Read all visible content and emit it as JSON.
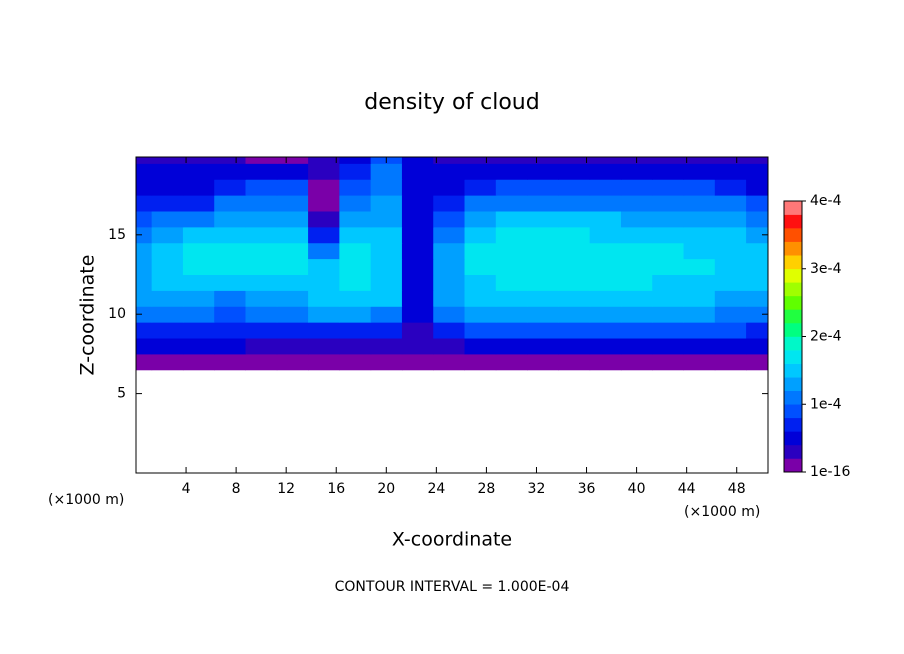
{
  "chart_data": {
    "type": "heatmap",
    "title": "density of cloud",
    "xlabel": "X-coordinate",
    "ylabel": "Z-coordinate",
    "x_unit_label": "(×1000 m)",
    "y_unit_label": "(×1000 m)",
    "footer": "CONTOUR INTERVAL = 1.000E-04",
    "xlim": [
      0,
      50.5
    ],
    "ylim": [
      0,
      19.9
    ],
    "xticks": [
      4,
      8,
      12,
      16,
      20,
      24,
      28,
      32,
      36,
      40,
      44,
      48
    ],
    "yticks": [
      5,
      10,
      15
    ],
    "clim": [
      1e-16,
      0.0004
    ],
    "cticks": [
      {
        "value": 1e-16,
        "label": "1e-16"
      },
      {
        "value": 0.0001,
        "label": "1e-4"
      },
      {
        "value": 0.0002,
        "label": "2e-4"
      },
      {
        "value": 0.0003,
        "label": "3e-4"
      },
      {
        "value": 0.0004,
        "label": "4e-4"
      }
    ],
    "colormap": [
      "#7a00a8",
      "#2a00c0",
      "#0000d8",
      "#0020f0",
      "#0050ff",
      "#0078ff",
      "#00a0ff",
      "#00c8ff",
      "#00e6f0",
      "#00f8c8",
      "#00ff80",
      "#20ff40",
      "#60ff00",
      "#a0ff00",
      "#e0ff00",
      "#ffd000",
      "#ff9000",
      "#ff5000",
      "#ff1010",
      "#ff7878"
    ],
    "x": [
      0,
      2.5,
      5,
      7.5,
      10,
      12.5,
      15,
      17.5,
      20,
      22.5,
      25,
      27.5,
      30,
      32.5,
      35,
      37.5,
      40,
      42.5,
      45,
      47.5,
      50
    ],
    "y": [
      7,
      8,
      9,
      10,
      11,
      12,
      13,
      14,
      15,
      16,
      17,
      18,
      19,
      20
    ],
    "z": [
      [
        2e-05,
        2e-05,
        2e-05,
        2e-05,
        1e-05,
        1e-05,
        1e-05,
        1e-05,
        1e-05,
        1e-05,
        2e-05,
        2e-05,
        2e-05,
        2e-05,
        2e-05,
        2e-05,
        2e-05,
        2e-05,
        2e-05,
        2e-05,
        2e-05
      ],
      [
        5e-05,
        5e-05,
        5e-05,
        5e-05,
        4e-05,
        3e-05,
        4e-05,
        4e-05,
        4e-05,
        3e-05,
        4e-05,
        5e-05,
        5e-05,
        5e-05,
        5e-05,
        5e-05,
        5e-05,
        5e-05,
        5e-05,
        5e-05,
        5e-05
      ],
      [
        8e-05,
        8e-05,
        8e-05,
        7e-05,
        8e-05,
        8e-05,
        8e-05,
        8e-05,
        8e-05,
        4e-05,
        8e-05,
        9e-05,
        9e-05,
        9e-05,
        9e-05,
        9e-05,
        9e-05,
        9e-05,
        9e-05,
        9e-05,
        8e-05
      ],
      [
        0.00011,
        0.00011,
        0.00012,
        9e-05,
        0.00011,
        0.00012,
        0.00013,
        0.00013,
        0.00012,
        5e-05,
        0.00011,
        0.00013,
        0.00013,
        0.00013,
        0.00013,
        0.00013,
        0.00013,
        0.00013,
        0.00013,
        0.00012,
        0.00012
      ],
      [
        0.00013,
        0.00013,
        0.00014,
        0.00011,
        0.00014,
        0.00014,
        0.00015,
        0.00016,
        0.00015,
        5e-05,
        0.00013,
        0.00015,
        0.00015,
        0.00015,
        0.00015,
        0.00015,
        0.00015,
        0.00015,
        0.00015,
        0.00014,
        0.00014
      ],
      [
        0.00014,
        0.00015,
        0.00016,
        0.00016,
        0.00016,
        0.00016,
        0.00016,
        0.00017,
        0.00016,
        5e-05,
        0.00014,
        0.00016,
        0.00017,
        0.00017,
        0.00017,
        0.00017,
        0.00017,
        0.00016,
        0.00016,
        0.00016,
        0.00015
      ],
      [
        0.00014,
        0.00015,
        0.00017,
        0.00017,
        0.00017,
        0.00017,
        0.00015,
        0.00018,
        0.00016,
        5e-05,
        0.00014,
        0.00017,
        0.00018,
        0.00018,
        0.00018,
        0.00018,
        0.00017,
        0.00017,
        0.00017,
        0.00016,
        0.00015
      ],
      [
        0.00013,
        0.00015,
        0.00017,
        0.00017,
        0.00017,
        0.00017,
        0.00012,
        0.00017,
        0.00016,
        5e-05,
        0.00013,
        0.00017,
        0.00018,
        0.00018,
        0.00018,
        0.00017,
        0.00017,
        0.00017,
        0.00016,
        0.00016,
        0.00015
      ],
      [
        0.00012,
        0.00014,
        0.00015,
        0.00016,
        0.00016,
        0.00016,
        7e-05,
        0.00016,
        0.00015,
        5e-05,
        0.00012,
        0.00016,
        0.00017,
        0.00017,
        0.00017,
        0.00016,
        0.00016,
        0.00016,
        0.00015,
        0.00015,
        0.00014
      ],
      [
        0.0001,
        0.00012,
        0.00012,
        0.00014,
        0.00014,
        0.00014,
        4e-05,
        0.00014,
        0.00014,
        5e-05,
        0.0001,
        0.00014,
        0.00015,
        0.00015,
        0.00015,
        0.00015,
        0.00014,
        0.00014,
        0.00013,
        0.00013,
        0.00012
      ],
      [
        8e-05,
        8e-05,
        8e-05,
        0.00011,
        0.00012,
        0.00012,
        2e-05,
        0.00012,
        0.00013,
        5e-05,
        8e-05,
        0.00011,
        0.00012,
        0.00012,
        0.00012,
        0.00012,
        0.00012,
        0.00012,
        0.00011,
        0.00011,
        9e-05
      ],
      [
        6e-05,
        6e-05,
        6e-05,
        8e-05,
        9e-05,
        0.0001,
        1e-05,
        9e-05,
        0.00012,
        5e-05,
        6e-05,
        8e-05,
        9e-05,
        9e-05,
        9e-05,
        9e-05,
        9e-05,
        9e-05,
        9e-05,
        8e-05,
        6e-05
      ],
      [
        5e-05,
        5e-05,
        5e-05,
        5e-05,
        5e-05,
        6e-05,
        3e-05,
        7e-05,
        0.00011,
        5e-05,
        5e-05,
        5e-05,
        6e-05,
        6e-05,
        6e-05,
        6e-05,
        6e-05,
        6e-05,
        6e-05,
        5e-05,
        5e-05
      ],
      [
        3e-05,
        3e-05,
        3e-05,
        3e-05,
        2e-05,
        2e-05,
        3e-05,
        5e-05,
        0.0001,
        6e-05,
        3e-05,
        3e-05,
        3e-05,
        3e-05,
        3e-05,
        3e-05,
        3e-05,
        3e-05,
        3e-05,
        3e-05,
        3e-05
      ]
    ]
  }
}
